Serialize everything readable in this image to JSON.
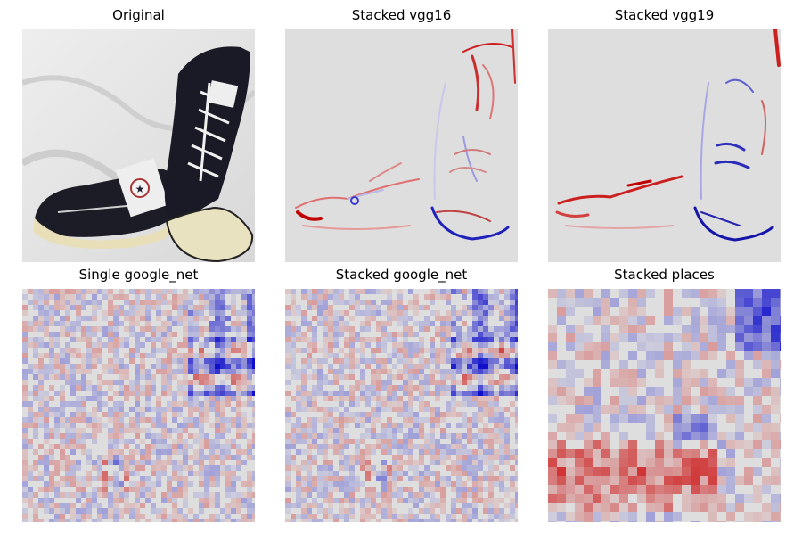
{
  "panels": [
    {
      "title": "Original",
      "kind": "photo",
      "subject": "black high-top sneakers pair"
    },
    {
      "title": "Stacked vgg16",
      "kind": "saliency-edges"
    },
    {
      "title": "Stacked vgg19",
      "kind": "saliency-edges"
    },
    {
      "title": "Single google_net",
      "kind": "saliency-grid"
    },
    {
      "title": "Stacked google_net",
      "kind": "saliency-grid"
    },
    {
      "title": "Stacked places",
      "kind": "saliency-grid"
    }
  ],
  "colors": {
    "positive": "#cc0000",
    "negative": "#1010cc",
    "neutral": "#dedede",
    "background": "#ffffff"
  }
}
